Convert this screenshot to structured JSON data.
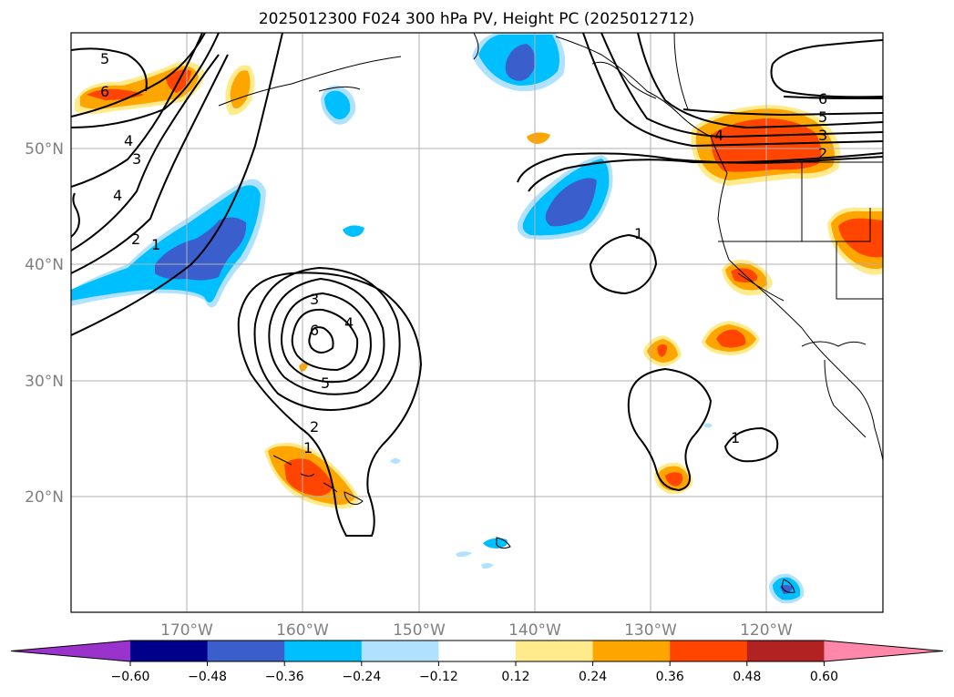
{
  "title": "2025012300 F024 300 hPa PV, Height PC (2025012712)",
  "lat_labels": [
    "50°N",
    "40°N",
    "30°N",
    "20°N"
  ],
  "lon_labels": [
    "170°W",
    "160°W",
    "150°W",
    "140°W",
    "130°W",
    "120°W"
  ],
  "colorbar": {
    "ticks": [
      "−0.60",
      "−0.48",
      "−0.36",
      "−0.24",
      "−0.12",
      "0.12",
      "0.24",
      "0.36",
      "0.48",
      "0.60"
    ],
    "colors": [
      "#9933cc",
      "#00008b",
      "#3a5fcd",
      "#00bfff",
      "#b0e2ff",
      "#ffffff",
      "#ffeb8c",
      "#ffa500",
      "#ff4500",
      "#b22222",
      "#ff88aa"
    ]
  },
  "contour_labels": [
    "5",
    "6",
    "4",
    "3",
    "4",
    "2",
    "1",
    "3",
    "4",
    "6",
    "5",
    "2",
    "1",
    "6",
    "5",
    "4",
    "3",
    "2",
    "1",
    "1",
    "1"
  ],
  "colors": {
    "orange": "#ffa500",
    "red_orange": "#ff4500",
    "yellow": "#ffeb8c",
    "cyan": "#00bfff",
    "light_blue": "#b0e2ff",
    "blue": "#3a5fcd"
  }
}
